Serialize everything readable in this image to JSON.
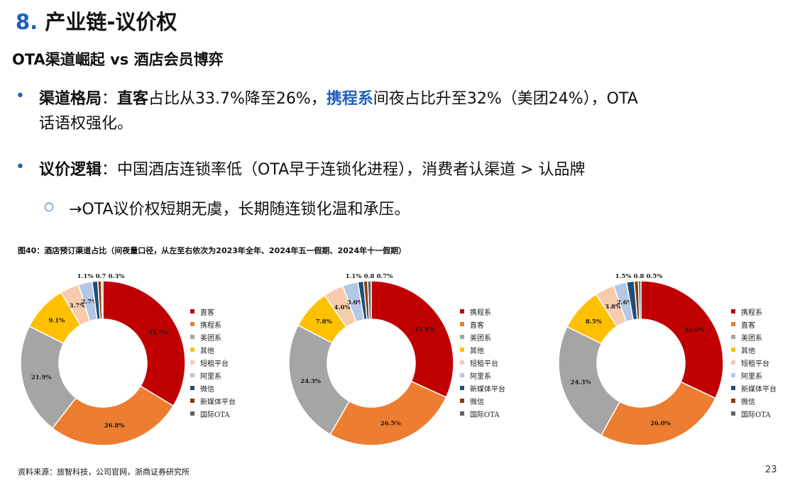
{
  "header": {
    "number": "8.",
    "title": "产业链-议价权",
    "subtitle": "OTA渠道崛起 vs 酒店会员博弈"
  },
  "bullets": {
    "b1_label": "渠道格局",
    "b1_colon": "：",
    "b1_bold": "直客",
    "b1_text1": "占比从33.7%降至26%，",
    "b1_blue": "携程系",
    "b1_text2": "间夜占比升至32%（美团24%），OTA",
    "b1_line2": "话语权强化。",
    "b2_label": "议价逻辑",
    "b2_text": "：中国酒店连锁率低（OTA早于连锁化进程），消费者认渠道 > 认品牌",
    "sub1": "→OTA议价权短期无虞，长期随连锁化温和承压。"
  },
  "chart_caption": "图40：酒店预订渠道占比（间夜量口径，从左至右依次为2023年全年、2024年五一假期、2024年十一假期）",
  "chart_data": [
    {
      "type": "pie",
      "title": "",
      "categories": [
        "直客",
        "携程系",
        "美团系",
        "其他",
        "短租平台",
        "阿里系",
        "微信",
        "新媒体平台",
        "国际OTA"
      ],
      "values": [
        33.7,
        26.8,
        21.9,
        9.1,
        3.7,
        2.7,
        1.1,
        0.7,
        0.3
      ],
      "labels": [
        "33.7%",
        "26.8%",
        "21.9%",
        "9.1%",
        "3.7%",
        "2.7%",
        "1.1%",
        "0.7",
        "0.3%"
      ],
      "colors": [
        "#c00000",
        "#ed7d31",
        "#a5a5a5",
        "#ffc000",
        "#f8cbad",
        "#b4c7e7",
        "#1f4e79",
        "#843c0c",
        "#636363"
      ],
      "legend": "right"
    },
    {
      "type": "pie",
      "title": "",
      "categories": [
        "携程系",
        "直客",
        "美团系",
        "其他",
        "短租平台",
        "阿里系",
        "新媒体平台",
        "微信",
        "国际OTA"
      ],
      "values": [
        31.8,
        26.5,
        24.3,
        7.8,
        4.0,
        3.0,
        1.1,
        0.8,
        0.7
      ],
      "labels": [
        "31.8%",
        "26.5%",
        "24.3%",
        "7.8%",
        "4.0%",
        "3.0%",
        "1.1%",
        "0.8",
        "0.7%"
      ],
      "colors": [
        "#c00000",
        "#ed7d31",
        "#a5a5a5",
        "#ffc000",
        "#f8cbad",
        "#b4c7e7",
        "#1f4e79",
        "#843c0c",
        "#636363"
      ],
      "legend": "right"
    },
    {
      "type": "pie",
      "title": "",
      "categories": [
        "携程系",
        "直客",
        "美团系",
        "其他",
        "短租平台",
        "阿里系",
        "新媒体平台",
        "微信",
        "国际OTA"
      ],
      "values": [
        32.0,
        26.0,
        24.3,
        8.5,
        3.8,
        2.6,
        1.5,
        0.8,
        0.5
      ],
      "labels": [
        "32.0%",
        "26.0%",
        "24.3%",
        "8.5%",
        "3.8%",
        "2.6%",
        "1.5%",
        "0.8",
        "0.5%"
      ],
      "colors": [
        "#c00000",
        "#ed7d31",
        "#a5a5a5",
        "#ffc000",
        "#f8cbad",
        "#b4c7e7",
        "#1f4e79",
        "#843c0c",
        "#636363"
      ],
      "legend": "right"
    }
  ],
  "footer": {
    "source": "资料来源：旅智科技，公司官网，浙商证券研究所",
    "page": "23"
  }
}
